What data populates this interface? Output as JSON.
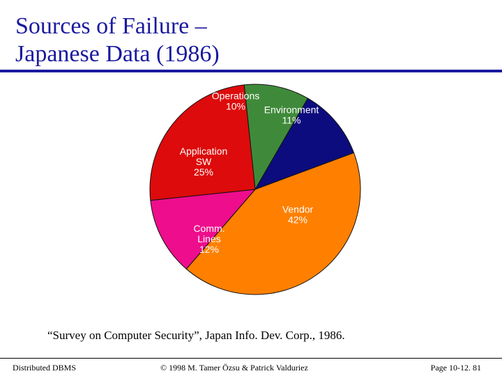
{
  "slide": {
    "title_line1": "Sources of Failure –",
    "title_line2": "Japanese Data (1986)",
    "source_note": "“Survey on Computer Security”, Japan Info. Dev. Corp., 1986."
  },
  "footer": {
    "left": "Distributed DBMS",
    "center": "© 1998 M. Tamer Özsu & Patrick Valduriez",
    "right": "Page 10-12. 81"
  },
  "colors": {
    "title": "#1a1a9e",
    "rule": "#1a1a9e"
  },
  "chart_data": {
    "type": "pie",
    "title": "",
    "slices": [
      {
        "label_lines": [
          "Operations",
          "10%"
        ],
        "value": 10,
        "color": "#3f8a3a",
        "label_color": "#ffffff"
      },
      {
        "label_lines": [
          "Environment",
          "11%"
        ],
        "value": 11,
        "color": "#0c0c7e",
        "label_color": "#ffffff"
      },
      {
        "label_lines": [
          "Vendor",
          "42%"
        ],
        "value": 42,
        "color": "#ff8000",
        "label_color": "#ffffff"
      },
      {
        "label_lines": [
          "Comm.",
          "Lines",
          "12%"
        ],
        "value": 12,
        "color": "#ee0d8c",
        "label_color": "#ffffff"
      },
      {
        "label_lines": [
          "Application",
          "SW",
          "25%"
        ],
        "value": 25,
        "color": "#dd0b0b",
        "label_color": "#ffffff"
      }
    ]
  }
}
